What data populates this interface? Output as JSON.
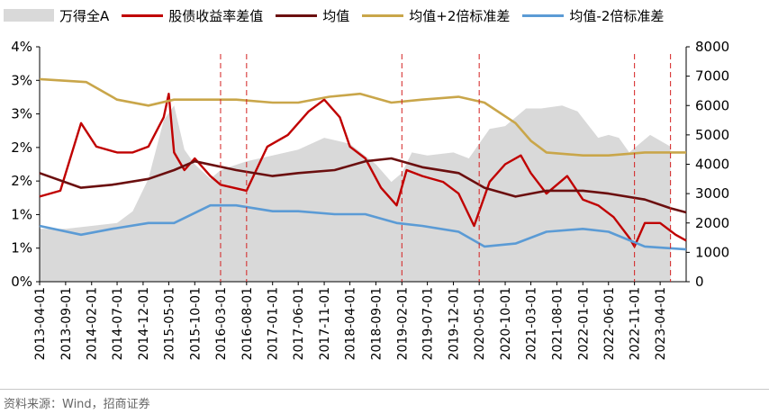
{
  "legend": {
    "area_label": "万得全A",
    "spread_label": "股债收益率差值",
    "mean_label": "均值",
    "upper_label": "均值+2倍标准差",
    "lower_label": "均值-2倍标准差"
  },
  "source": "资料来源：Wind，招商证券",
  "chart_data": {
    "type": "line",
    "colors": {
      "area": "#d9d9d9",
      "spread": "#c00000",
      "mean": "#6b0f0f",
      "upper": "#c9a64a",
      "lower": "#5b9bd5",
      "vline": "#d42020"
    },
    "left_axis": {
      "ticks": [
        "4%",
        "3%",
        "3%",
        "2%",
        "2%",
        "1%",
        "1%",
        "0%"
      ],
      "ylim": [
        0,
        4.0
      ]
    },
    "right_axis": {
      "ticks": [
        "8000",
        "7000",
        "6000",
        "5000",
        "4000",
        "3000",
        "2000",
        "1000",
        "0"
      ],
      "ylim": [
        0,
        8000
      ]
    },
    "x_tick_labels": [
      "2013-04-01",
      "2013-09-01",
      "2014-02-01",
      "2014-07-01",
      "2014-12-01",
      "2015-05-01",
      "2015-10-01",
      "2016-03-01",
      "2016-08-01",
      "2017-01-01",
      "2017-06-01",
      "2017-11-01",
      "2018-04-01",
      "2018-09-01",
      "2019-02-01",
      "2019-07-01",
      "2019-12-01",
      "2020-05-01",
      "2020-10-01",
      "2021-03-01",
      "2021-08-01",
      "2022-01-01",
      "2022-06-01",
      "2022-11-01",
      "2023-04-01"
    ],
    "x_range": [
      "2013-04-01",
      "2023-09-01"
    ],
    "vertical_markers": [
      "2016-03-01",
      "2016-08-01",
      "2019-02-01",
      "2020-05-01",
      "2022-11-01",
      "2023-06-01"
    ],
    "series": [
      {
        "name": "万得全A",
        "axis": "right",
        "kind": "area",
        "x": [
          "2013-04",
          "2013-09",
          "2014-02",
          "2014-07",
          "2014-10",
          "2015-01",
          "2015-04",
          "2015-06",
          "2015-08",
          "2015-10",
          "2016-01",
          "2016-03",
          "2016-08",
          "2017-01",
          "2017-06",
          "2017-11",
          "2018-04",
          "2018-09",
          "2018-12",
          "2019-02",
          "2019-04",
          "2019-07",
          "2019-12",
          "2020-03",
          "2020-07",
          "2020-10",
          "2021-02",
          "2021-05",
          "2021-09",
          "2021-12",
          "2022-04",
          "2022-06",
          "2022-08",
          "2022-10",
          "2023-02",
          "2023-06"
        ],
        "values": [
          1800,
          1800,
          1900,
          2000,
          2400,
          3500,
          5500,
          6000,
          4500,
          4000,
          3500,
          3800,
          4100,
          4300,
          4500,
          4900,
          4700,
          4000,
          3400,
          3700,
          4400,
          4300,
          4400,
          4200,
          5200,
          5300,
          5900,
          5900,
          6000,
          5800,
          4900,
          5000,
          4900,
          4400,
          5000,
          4600
        ]
      },
      {
        "name": "股债收益率差值",
        "axis": "left",
        "kind": "line",
        "x": [
          "2013-04",
          "2013-08",
          "2013-12",
          "2014-03",
          "2014-07",
          "2014-10",
          "2015-01",
          "2015-04",
          "2015-05",
          "2015-06",
          "2015-08",
          "2015-10",
          "2016-01",
          "2016-03",
          "2016-08",
          "2016-12",
          "2017-04",
          "2017-08",
          "2017-11",
          "2018-02",
          "2018-04",
          "2018-07",
          "2018-10",
          "2019-01",
          "2019-03",
          "2019-06",
          "2019-10",
          "2020-01",
          "2020-04",
          "2020-07",
          "2020-10",
          "2021-01",
          "2021-03",
          "2021-06",
          "2021-10",
          "2022-01",
          "2022-04",
          "2022-07",
          "2022-10",
          "2022-11",
          "2023-01",
          "2023-04",
          "2023-07",
          "2023-09"
        ],
        "values": [
          1.45,
          1.55,
          2.7,
          2.3,
          2.2,
          2.2,
          2.3,
          2.8,
          3.2,
          2.2,
          1.9,
          2.1,
          1.8,
          1.65,
          1.55,
          2.3,
          2.5,
          2.9,
          3.1,
          2.8,
          2.3,
          2.1,
          1.6,
          1.3,
          1.9,
          1.8,
          1.7,
          1.5,
          0.95,
          1.7,
          2.0,
          2.15,
          1.85,
          1.5,
          1.8,
          1.4,
          1.3,
          1.1,
          0.75,
          0.6,
          1.0,
          1.0,
          0.8,
          0.7
        ]
      },
      {
        "name": "均值",
        "axis": "left",
        "kind": "line",
        "x": [
          "2013-04",
          "2013-12",
          "2014-06",
          "2015-01",
          "2015-06",
          "2015-10",
          "2016-06",
          "2017-01",
          "2017-06",
          "2018-01",
          "2018-07",
          "2018-12",
          "2019-06",
          "2020-01",
          "2020-06",
          "2020-12",
          "2021-06",
          "2022-01",
          "2022-06",
          "2023-01",
          "2023-06",
          "2023-09"
        ],
        "values": [
          1.85,
          1.6,
          1.65,
          1.75,
          1.9,
          2.05,
          1.9,
          1.8,
          1.85,
          1.9,
          2.05,
          2.1,
          1.95,
          1.85,
          1.6,
          1.45,
          1.55,
          1.55,
          1.5,
          1.4,
          1.25,
          1.18
        ]
      },
      {
        "name": "均值+2倍标准差",
        "axis": "left",
        "kind": "line",
        "x": [
          "2013-04",
          "2014-01",
          "2014-07",
          "2015-01",
          "2015-06",
          "2016-01",
          "2016-06",
          "2017-01",
          "2017-06",
          "2017-12",
          "2018-06",
          "2018-12",
          "2019-06",
          "2020-01",
          "2020-06",
          "2020-12",
          "2021-03",
          "2021-06",
          "2022-01",
          "2022-06",
          "2023-01",
          "2023-09"
        ],
        "values": [
          3.45,
          3.4,
          3.1,
          3.0,
          3.1,
          3.1,
          3.1,
          3.05,
          3.05,
          3.15,
          3.2,
          3.05,
          3.1,
          3.15,
          3.05,
          2.7,
          2.4,
          2.2,
          2.15,
          2.15,
          2.2,
          2.2
        ]
      },
      {
        "name": "均值-2倍标准差",
        "axis": "left",
        "kind": "line",
        "x": [
          "2013-04",
          "2013-12",
          "2014-06",
          "2015-01",
          "2015-06",
          "2016-01",
          "2016-06",
          "2017-01",
          "2017-06",
          "2018-01",
          "2018-07",
          "2019-01",
          "2019-06",
          "2020-01",
          "2020-06",
          "2020-12",
          "2021-06",
          "2022-01",
          "2022-06",
          "2023-01",
          "2023-09"
        ],
        "values": [
          0.95,
          0.8,
          0.9,
          1.0,
          1.0,
          1.3,
          1.3,
          1.2,
          1.2,
          1.15,
          1.15,
          1.0,
          0.95,
          0.85,
          0.6,
          0.65,
          0.85,
          0.9,
          0.85,
          0.6,
          0.55
        ]
      }
    ]
  }
}
